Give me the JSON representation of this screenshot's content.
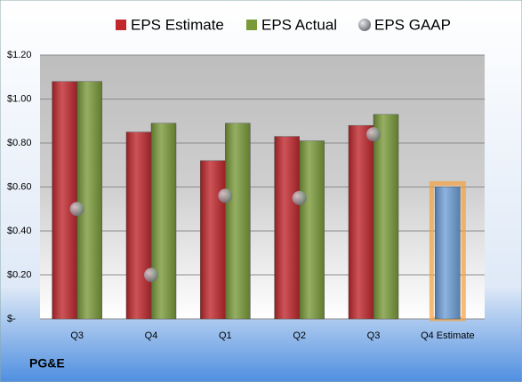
{
  "chart_data": {
    "type": "bar",
    "title": "PG&E",
    "categories": [
      "Q3",
      "Q4",
      "Q1",
      "Q2",
      "Q3",
      "Q4 Estimate"
    ],
    "series": [
      {
        "name": "EPS Estimate",
        "color": "#c0282d",
        "point_colors": [
          "#c0282d",
          "#c0282d",
          "#c0282d",
          "#c0282d",
          "#c0282d",
          "#6f9fd8"
        ],
        "values": [
          1.08,
          0.85,
          0.72,
          0.83,
          0.88,
          0.6
        ]
      },
      {
        "name": "EPS Actual",
        "color": "#7a9a3a",
        "values": [
          1.08,
          0.89,
          0.89,
          0.81,
          0.93,
          null
        ]
      },
      {
        "name": "EPS GAAP",
        "color": "#9aa0a8",
        "marker": "circle",
        "values": [
          0.5,
          0.2,
          0.56,
          0.55,
          0.84,
          null
        ]
      }
    ],
    "ylim": [
      0,
      1.2
    ],
    "yticks": [
      {
        "value": 0,
        "label": "$-"
      },
      {
        "value": 0.2,
        "label": "$0.20"
      },
      {
        "value": 0.4,
        "label": "$0.40"
      },
      {
        "value": 0.6,
        "label": "$0.60"
      },
      {
        "value": 0.8,
        "label": "$0.80"
      },
      {
        "value": 1.0,
        "label": "$1.00"
      },
      {
        "value": 1.2,
        "label": "$1.20"
      }
    ],
    "grid": true
  }
}
